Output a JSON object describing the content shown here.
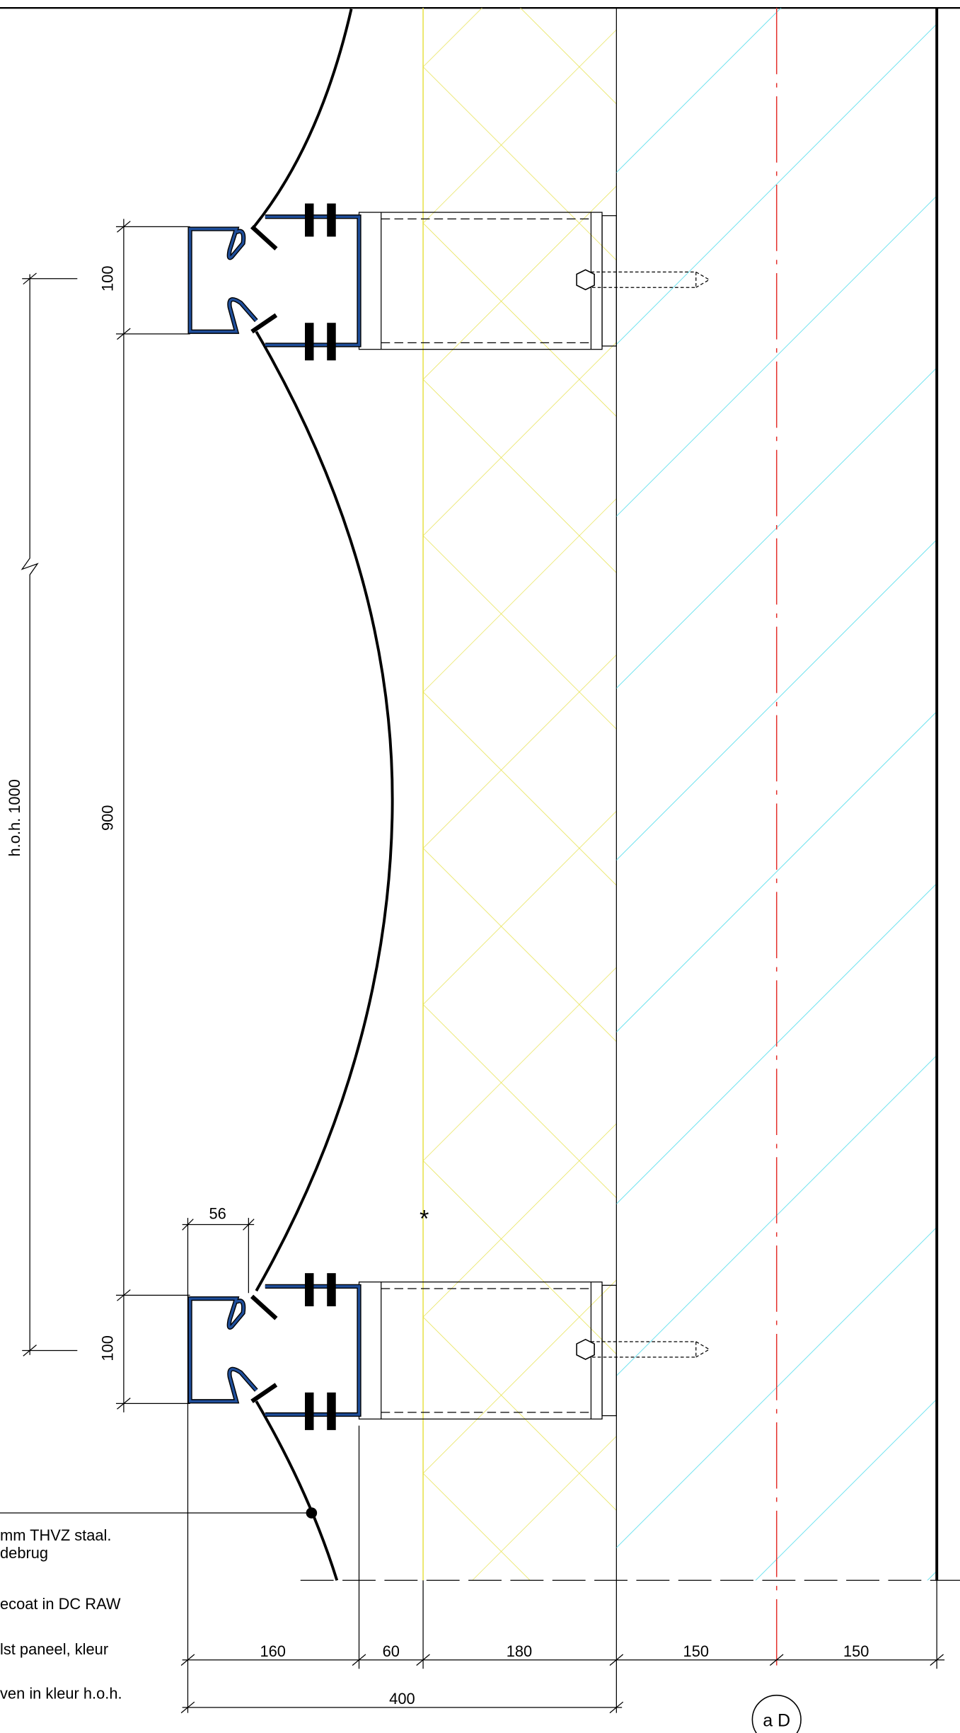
{
  "dimensions": {
    "top_profile": "100",
    "span": "900",
    "bottom_profile": "100",
    "pitch": "h.o.h. 1000",
    "flange": "56",
    "cladding": "160",
    "cavity": "60",
    "insulation": "180",
    "wall_outer": "150",
    "wall_inner": "150",
    "total": "400"
  },
  "marker": "*",
  "grid_label": "a D",
  "notes": [
    "mm THVZ staal.",
    "debrug",
    "ecoat in DC RAW",
    "lst paneel, kleur",
    "ven in kleur h.o.h."
  ]
}
